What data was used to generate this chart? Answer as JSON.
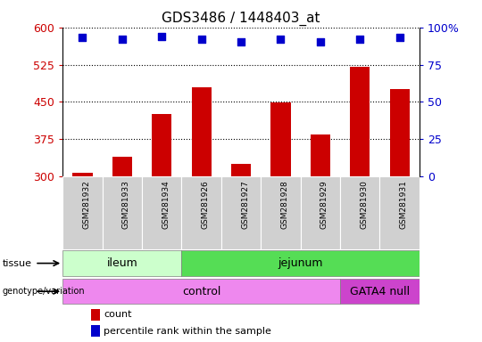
{
  "title": "GDS3486 / 1448403_at",
  "samples": [
    "GSM281932",
    "GSM281933",
    "GSM281934",
    "GSM281926",
    "GSM281927",
    "GSM281928",
    "GSM281929",
    "GSM281930",
    "GSM281931"
  ],
  "counts": [
    307,
    340,
    425,
    480,
    325,
    448,
    385,
    520,
    475
  ],
  "percentile_ranks": [
    93,
    92,
    94,
    92,
    90,
    92,
    90,
    92,
    93
  ],
  "y_min": 300,
  "y_max": 600,
  "y_ticks": [
    300,
    375,
    450,
    525,
    600
  ],
  "right_y_ticks": [
    0,
    25,
    50,
    75,
    100
  ],
  "bar_color": "#cc0000",
  "dot_color": "#0000cc",
  "tissue_groups": [
    {
      "label": "ileum",
      "start": 0,
      "end": 3,
      "color": "#ccffcc"
    },
    {
      "label": "jejunum",
      "start": 3,
      "end": 9,
      "color": "#55dd55"
    }
  ],
  "genotype_groups": [
    {
      "label": "control",
      "start": 0,
      "end": 7,
      "color": "#ee88ee"
    },
    {
      "label": "GATA4 null",
      "start": 7,
      "end": 9,
      "color": "#cc44cc"
    }
  ],
  "tick_label_color": "#cc0000",
  "right_tick_color": "#0000cc",
  "bar_width": 0.5,
  "dot_size": 40,
  "title_fontsize": 11,
  "sample_label_fontsize": 6.5,
  "annot_fontsize": 8.5,
  "legend_fontsize": 8
}
